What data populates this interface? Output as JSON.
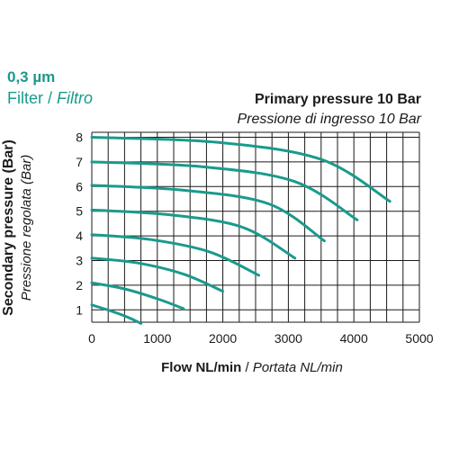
{
  "header": {
    "filter_size": "0,3 µm",
    "filter_en": "Filter",
    "filter_sep": " / ",
    "filter_it": "Filtro"
  },
  "chart_data": {
    "type": "line",
    "title": "Primary pressure 10 Bar",
    "subtitle": "Pressione di ingresso 10 Bar",
    "xlabel": "Flow NL/min",
    "xlabel_sep": " / ",
    "xlabel_it": "Portata NL/min",
    "ylabel": "Secondary pressure (Bar)",
    "ylabel_it": "Pressione regolata (Bar)",
    "xlim": [
      0,
      5000
    ],
    "ylim": [
      0.5,
      8.2
    ],
    "grid": true,
    "x_ticks": [
      0,
      1000,
      2000,
      3000,
      4000,
      5000
    ],
    "y_ticks": [
      1,
      2,
      3,
      4,
      5,
      6,
      7,
      8
    ],
    "line_color": "#1a9a8c",
    "series": [
      {
        "x": [
          0,
          300,
          550,
          750
        ],
        "y": [
          1.2,
          0.95,
          0.7,
          0.45
        ]
      },
      {
        "x": [
          0,
          500,
          1000,
          1400
        ],
        "y": [
          2.1,
          1.85,
          1.45,
          1.05
        ]
      },
      {
        "x": [
          0,
          700,
          1400,
          2000
        ],
        "y": [
          3.1,
          2.9,
          2.45,
          1.75
        ]
      },
      {
        "x": [
          0,
          900,
          1800,
          2550
        ],
        "y": [
          4.05,
          3.85,
          3.35,
          2.4
        ]
      },
      {
        "x": [
          0,
          1200,
          2300,
          3100
        ],
        "y": [
          5.05,
          4.85,
          4.35,
          3.1
        ]
      },
      {
        "x": [
          0,
          1400,
          2700,
          3550
        ],
        "y": [
          6.05,
          5.85,
          5.3,
          3.8
        ]
      },
      {
        "x": [
          0,
          1700,
          3100,
          4050
        ],
        "y": [
          7.0,
          6.8,
          6.2,
          4.65
        ]
      },
      {
        "x": [
          0,
          1900,
          3500,
          4550
        ],
        "y": [
          8.0,
          7.8,
          7.1,
          5.4
        ]
      }
    ]
  }
}
